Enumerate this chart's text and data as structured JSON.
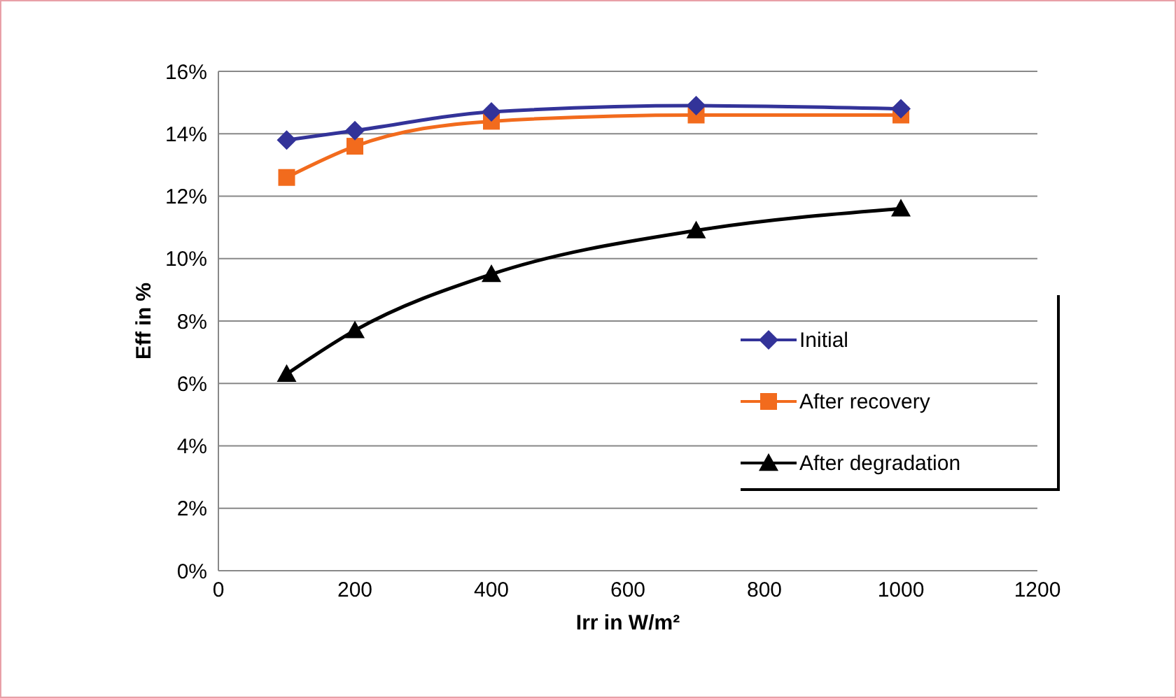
{
  "chart_data": {
    "type": "line",
    "xlabel": "Irr in W/m²",
    "ylabel": "Eff in %",
    "x": [
      100,
      200,
      400,
      700,
      1000
    ],
    "series": [
      {
        "name": "Initial",
        "color": "#333399",
        "marker": "diamond",
        "values": [
          13.8,
          14.1,
          14.7,
          14.9,
          14.8
        ]
      },
      {
        "name": "After recovery",
        "color": "#f26b1d",
        "marker": "square",
        "values": [
          12.6,
          13.6,
          14.4,
          14.6,
          14.6
        ]
      },
      {
        "name": "After degradation",
        "color": "#000000",
        "marker": "triangle",
        "values": [
          6.3,
          7.7,
          9.5,
          10.9,
          11.6
        ]
      }
    ],
    "xlim": [
      0,
      1200
    ],
    "xticks": [
      0,
      200,
      400,
      600,
      800,
      1000,
      1200
    ],
    "ylim": [
      0,
      16
    ],
    "yticks": [
      {
        "value": 0,
        "label": "0%"
      },
      {
        "value": 2,
        "label": "2%"
      },
      {
        "value": 4,
        "label": "4%"
      },
      {
        "value": 6,
        "label": "6%"
      },
      {
        "value": 8,
        "label": "8%"
      },
      {
        "value": 10,
        "label": "10%"
      },
      {
        "value": 12,
        "label": "12%"
      },
      {
        "value": 14,
        "label": "14%"
      },
      {
        "value": 16,
        "label": "16%"
      }
    ],
    "grid": "y",
    "legend": "right",
    "line_style": "solid"
  }
}
